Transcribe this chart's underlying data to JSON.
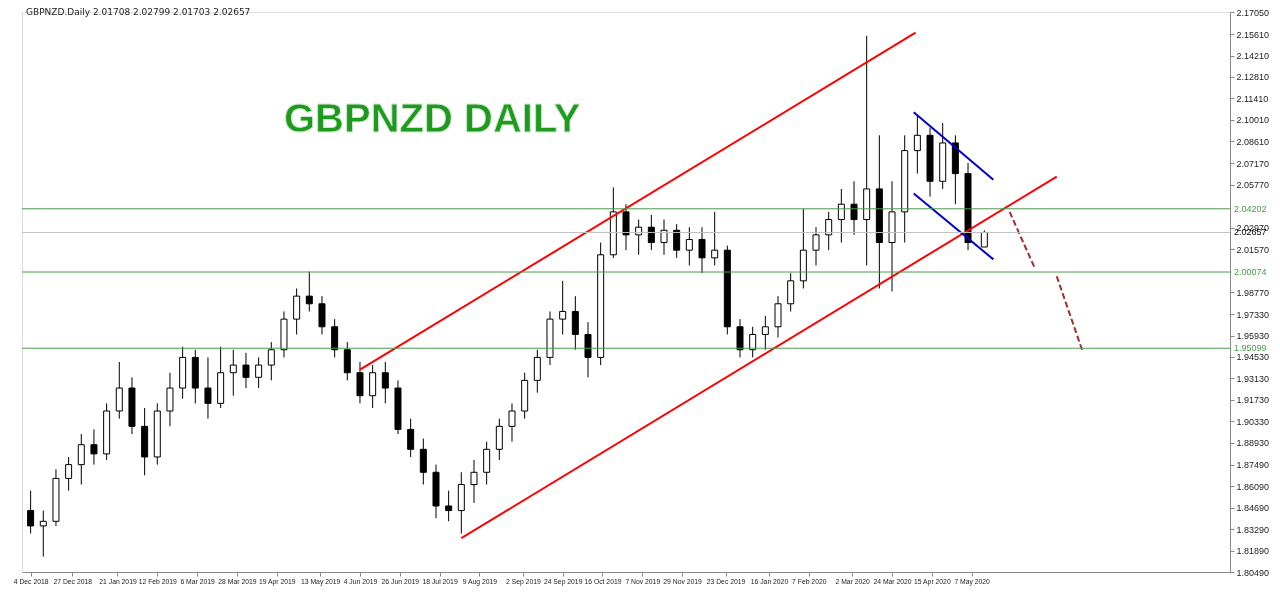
{
  "chart_data": {
    "type": "candlestick",
    "title": "GBPNZD DAILY",
    "subtitle": "GBPNZD.Daily  2.01708 2.02799 2.01703 2.02657",
    "color": "#000000",
    "x": [
      "2018-12-04",
      "2018-12-11",
      "2018-12-18",
      "2018-12-25",
      "2019-01-01",
      "2019-01-08",
      "2019-01-15",
      "2019-01-22",
      "2019-01-29",
      "2019-02-05",
      "2019-02-12",
      "2019-02-19",
      "2019-02-26",
      "2019-03-05",
      "2019-03-12",
      "2019-03-19",
      "2019-03-26",
      "2019-04-02",
      "2019-04-09",
      "2019-04-16",
      "2019-04-23",
      "2019-04-30",
      "2019-05-07",
      "2019-05-14",
      "2019-05-21",
      "2019-05-28",
      "2019-06-04",
      "2019-06-11",
      "2019-06-18",
      "2019-06-25",
      "2019-07-02",
      "2019-07-09",
      "2019-07-16",
      "2019-07-23",
      "2019-07-30",
      "2019-08-06",
      "2019-08-13",
      "2019-08-20",
      "2019-08-27",
      "2019-09-03",
      "2019-09-10",
      "2019-09-17",
      "2019-09-24",
      "2019-10-01",
      "2019-10-08",
      "2019-10-15",
      "2019-10-22",
      "2019-10-29",
      "2019-11-05",
      "2019-11-12",
      "2019-11-19",
      "2019-11-26",
      "2019-12-03",
      "2019-12-10",
      "2019-12-17",
      "2019-12-24",
      "2019-12-31",
      "2020-01-07",
      "2020-01-14",
      "2020-01-21",
      "2020-01-28",
      "2020-02-04",
      "2020-02-11",
      "2020-02-18",
      "2020-02-25",
      "2020-03-03",
      "2020-03-10",
      "2020-03-17",
      "2020-03-24",
      "2020-03-31",
      "2020-04-07",
      "2020-04-14",
      "2020-04-21",
      "2020-04-28",
      "2020-05-05",
      "2020-05-14"
    ],
    "ohlc": [
      [
        1.845,
        1.858,
        1.83,
        1.835
      ],
      [
        1.835,
        1.845,
        1.815,
        1.838
      ],
      [
        1.838,
        1.872,
        1.835,
        1.866
      ],
      [
        1.866,
        1.88,
        1.858,
        1.875
      ],
      [
        1.875,
        1.895,
        1.862,
        1.888
      ],
      [
        1.888,
        1.898,
        1.875,
        1.882
      ],
      [
        1.882,
        1.915,
        1.878,
        1.91
      ],
      [
        1.91,
        1.942,
        1.905,
        1.925
      ],
      [
        1.925,
        1.932,
        1.895,
        1.9
      ],
      [
        1.9,
        1.912,
        1.868,
        1.88
      ],
      [
        1.88,
        1.915,
        1.875,
        1.91
      ],
      [
        1.91,
        1.935,
        1.9,
        1.925
      ],
      [
        1.925,
        1.952,
        1.918,
        1.945
      ],
      [
        1.945,
        1.95,
        1.915,
        1.925
      ],
      [
        1.925,
        1.945,
        1.905,
        1.915
      ],
      [
        1.915,
        1.952,
        1.912,
        1.935
      ],
      [
        1.935,
        1.95,
        1.92,
        1.94
      ],
      [
        1.94,
        1.948,
        1.925,
        1.932
      ],
      [
        1.932,
        1.945,
        1.925,
        1.94
      ],
      [
        1.94,
        1.955,
        1.93,
        1.95
      ],
      [
        1.95,
        1.975,
        1.945,
        1.97
      ],
      [
        1.97,
        1.99,
        1.96,
        1.985
      ],
      [
        1.985,
        2.001,
        1.975,
        1.98
      ],
      [
        1.98,
        1.985,
        1.96,
        1.965
      ],
      [
        1.965,
        1.97,
        1.945,
        1.95
      ],
      [
        1.95,
        1.955,
        1.93,
        1.935
      ],
      [
        1.935,
        1.942,
        1.915,
        1.92
      ],
      [
        1.92,
        1.94,
        1.912,
        1.935
      ],
      [
        1.935,
        1.942,
        1.915,
        1.925
      ],
      [
        1.925,
        1.93,
        1.895,
        1.898
      ],
      [
        1.898,
        1.905,
        1.88,
        1.885
      ],
      [
        1.885,
        1.892,
        1.862,
        1.87
      ],
      [
        1.87,
        1.875,
        1.84,
        1.848
      ],
      [
        1.848,
        1.858,
        1.838,
        1.845
      ],
      [
        1.845,
        1.87,
        1.83,
        1.862
      ],
      [
        1.862,
        1.878,
        1.85,
        1.87
      ],
      [
        1.87,
        1.89,
        1.862,
        1.885
      ],
      [
        1.885,
        1.905,
        1.878,
        1.9
      ],
      [
        1.9,
        1.915,
        1.89,
        1.91
      ],
      [
        1.91,
        1.935,
        1.905,
        1.93
      ],
      [
        1.93,
        1.95,
        1.922,
        1.945
      ],
      [
        1.945,
        1.975,
        1.94,
        1.97
      ],
      [
        1.97,
        1.995,
        1.96,
        1.975
      ],
      [
        1.975,
        1.985,
        1.95,
        1.96
      ],
      [
        1.96,
        1.968,
        1.932,
        1.945
      ],
      [
        1.945,
        2.02,
        1.94,
        2.012
      ],
      [
        2.012,
        2.056,
        2.01,
        2.04
      ],
      [
        2.04,
        2.045,
        2.015,
        2.025
      ],
      [
        2.025,
        2.035,
        2.012,
        2.03
      ],
      [
        2.03,
        2.038,
        2.015,
        2.02
      ],
      [
        2.02,
        2.035,
        2.012,
        2.028
      ],
      [
        2.028,
        2.032,
        2.01,
        2.015
      ],
      [
        2.015,
        2.03,
        2.005,
        2.022
      ],
      [
        2.022,
        2.03,
        2.0,
        2.01
      ],
      [
        2.01,
        2.04,
        2.005,
        2.015
      ],
      [
        2.015,
        2.018,
        1.96,
        1.965
      ],
      [
        1.965,
        1.97,
        1.945,
        1.95
      ],
      [
        1.95,
        1.965,
        1.945,
        1.96
      ],
      [
        1.96,
        1.972,
        1.95,
        1.965
      ],
      [
        1.965,
        1.985,
        1.958,
        1.98
      ],
      [
        1.98,
        2.0,
        1.975,
        1.995
      ],
      [
        1.995,
        2.042,
        1.99,
        2.015
      ],
      [
        2.015,
        2.03,
        2.005,
        2.025
      ],
      [
        2.025,
        2.04,
        2.015,
        2.035
      ],
      [
        2.035,
        2.055,
        2.02,
        2.045
      ],
      [
        2.045,
        2.06,
        2.025,
        2.035
      ],
      [
        2.035,
        2.155,
        2.005,
        2.055
      ],
      [
        2.055,
        2.09,
        1.99,
        2.02
      ],
      [
        2.02,
        2.06,
        1.988,
        2.04
      ],
      [
        2.04,
        2.09,
        2.02,
        2.08
      ],
      [
        2.08,
        2.103,
        2.065,
        2.09
      ],
      [
        2.09,
        2.095,
        2.05,
        2.06
      ],
      [
        2.06,
        2.098,
        2.055,
        2.085
      ],
      [
        2.085,
        2.09,
        2.045,
        2.065
      ],
      [
        2.065,
        2.072,
        2.015,
        2.02
      ],
      [
        2.01708,
        2.02799,
        2.01703,
        2.02657
      ]
    ],
    "series": [
      {
        "type": "line",
        "color": "#ff0000",
        "x": [
          "2019-07-30",
          "2020-06-23"
        ],
        "values": [
          1.827,
          2.063
        ]
      },
      {
        "type": "line",
        "color": "#ff0000",
        "x": [
          "2019-06-04",
          "2020-04-06"
        ],
        "values": [
          1.937,
          2.157
        ]
      },
      {
        "type": "line",
        "color": "#0000cc",
        "x": [
          "2020-04-05",
          "2020-05-19"
        ],
        "values": [
          2.105,
          2.061
        ]
      },
      {
        "type": "line",
        "color": "#0000cc",
        "x": [
          "2020-04-05",
          "2020-05-19"
        ],
        "values": [
          2.052,
          2.009
        ]
      },
      {
        "type": "line",
        "color": "#a52a2a",
        "line_style": "dashed",
        "x": [
          "2020-05-28",
          "2020-06-11"
        ],
        "values": [
          2.04,
          2.003
        ]
      },
      {
        "type": "line",
        "color": "#a52a2a",
        "line_style": "dashed",
        "x": [
          "2020-06-23",
          "2020-07-07"
        ],
        "values": [
          1.998,
          1.95
        ]
      }
    ],
    "ref_lines": [
      {
        "axis": "y",
        "value": 2.04202,
        "label": "2.04202",
        "color": "#4c9a4c"
      },
      {
        "axis": "y",
        "value": 2.00074,
        "label": "2.00074",
        "color": "#4c9a4c"
      },
      {
        "axis": "y",
        "value": 1.95099,
        "label": "1.95099",
        "color": "#4c9a4c"
      },
      {
        "axis": "y",
        "value": 2.02657,
        "label": "2.02657",
        "color": "#c0c0c0"
      }
    ],
    "xlim": [
      "2018-12-02",
      "2020-09-24"
    ],
    "xticks": [
      {
        "value": "2018-12-04",
        "label": "4 Dec 2018"
      },
      {
        "value": "2018-12-27",
        "label": "27 Dec 2018"
      },
      {
        "value": "2019-01-21",
        "label": "21 Jan 2019"
      },
      {
        "value": "2019-02-12",
        "label": "12 Feb 2019"
      },
      {
        "value": "2019-03-06",
        "label": "6 Mar 2019"
      },
      {
        "value": "2019-03-28",
        "label": "28 Mar 2019"
      },
      {
        "value": "2019-04-19",
        "label": "19 Apr 2019"
      },
      {
        "value": "2019-05-13",
        "label": "13 May 2019"
      },
      {
        "value": "2019-06-04",
        "label": "4 Jun 2019"
      },
      {
        "value": "2019-06-26",
        "label": "26 Jun 2019"
      },
      {
        "value": "2019-07-18",
        "label": "18 Jul 2019"
      },
      {
        "value": "2019-08-09",
        "label": "9 Aug 2019"
      },
      {
        "value": "2019-09-02",
        "label": "2 Sep 2019"
      },
      {
        "value": "2019-09-24",
        "label": "24 Sep 2019"
      },
      {
        "value": "2019-10-16",
        "label": "16 Oct 2019"
      },
      {
        "value": "2019-11-07",
        "label": "7 Nov 2019"
      },
      {
        "value": "2019-11-29",
        "label": "29 Nov 2019"
      },
      {
        "value": "2019-12-23",
        "label": "23 Dec 2019"
      },
      {
        "value": "2020-01-16",
        "label": "16 Jan 2020"
      },
      {
        "value": "2020-02-07",
        "label": "7 Feb 2020"
      },
      {
        "value": "2020-03-02",
        "label": "2 Mar 2020"
      },
      {
        "value": "2020-03-24",
        "label": "24 Mar 2020"
      },
      {
        "value": "2020-04-15",
        "label": "15 Apr 2020"
      },
      {
        "value": "2020-05-07",
        "label": "7 May 2020"
      }
    ],
    "ylim": [
      1.8049,
      2.1705
    ],
    "yticks": [
      {
        "value": 1.8049,
        "label": "1.80490"
      },
      {
        "value": 1.8189,
        "label": "1.81890"
      },
      {
        "value": 1.8329,
        "label": "1.83290"
      },
      {
        "value": 1.8469,
        "label": "1.84690"
      },
      {
        "value": 1.8609,
        "label": "1.86090"
      },
      {
        "value": 1.8749,
        "label": "1.87490"
      },
      {
        "value": 1.8893,
        "label": "1.88930"
      },
      {
        "value": 1.9033,
        "label": "1.90330"
      },
      {
        "value": 1.9173,
        "label": "1.91730"
      },
      {
        "value": 1.9313,
        "label": "1.93130"
      },
      {
        "value": 1.9453,
        "label": "1.94530"
      },
      {
        "value": 1.9593,
        "label": "1.95930"
      },
      {
        "value": 1.9733,
        "label": "1.97330"
      },
      {
        "value": 1.9877,
        "label": "1.98770"
      },
      {
        "value": 2.0157,
        "label": "2.01570"
      },
      {
        "value": 2.0297,
        "label": "2.02970"
      },
      {
        "value": 2.0577,
        "label": "2.05770"
      },
      {
        "value": 2.0717,
        "label": "2.07170"
      },
      {
        "value": 2.0861,
        "label": "2.08610"
      },
      {
        "value": 2.1001,
        "label": "2.10010"
      },
      {
        "value": 2.1141,
        "label": "2.11410"
      },
      {
        "value": 2.1281,
        "label": "2.12810"
      },
      {
        "value": 2.1421,
        "label": "2.14210"
      },
      {
        "value": 2.1561,
        "label": "2.15610"
      },
      {
        "value": 2.1705,
        "label": "2.17050"
      }
    ],
    "grid": false
  }
}
